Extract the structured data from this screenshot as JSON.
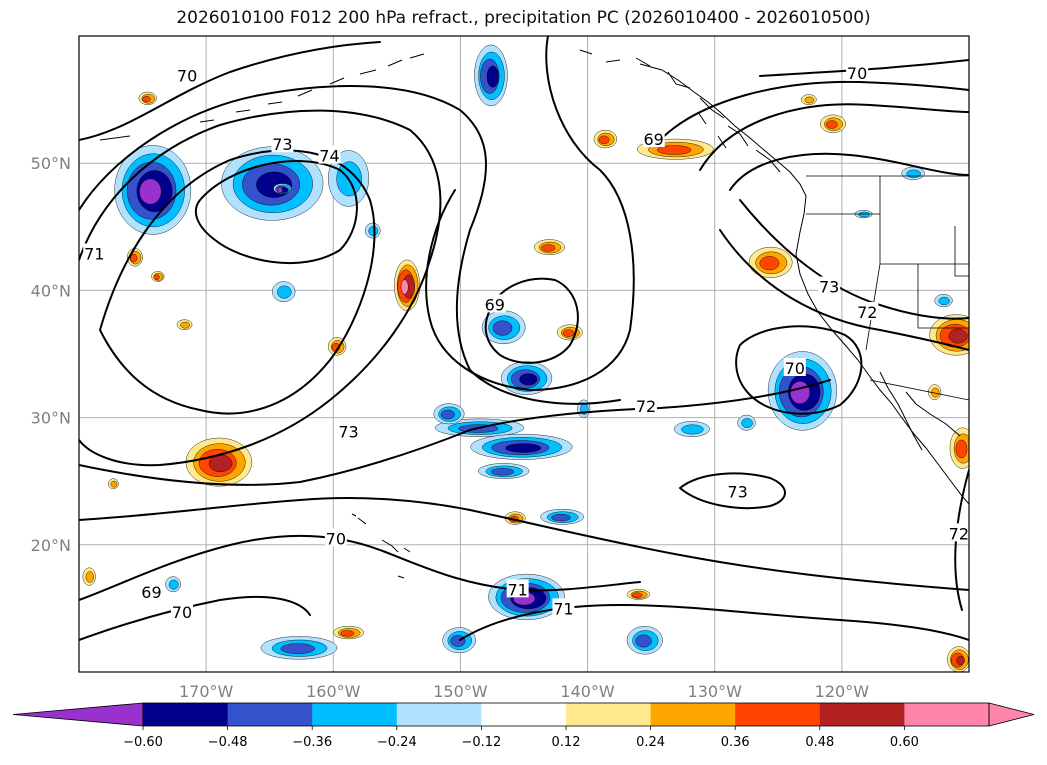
{
  "title": "2026010100 F012 200 hPa refract., precipitation PC (2026010400 - 2026010500)",
  "map": {
    "lon_range": [
      -180,
      -110
    ],
    "lat_range": [
      10,
      60
    ],
    "lat_ticks": [
      {
        "value": 50,
        "label": "50°N"
      },
      {
        "value": 40,
        "label": "40°N"
      },
      {
        "value": 30,
        "label": "30°N"
      },
      {
        "value": 20,
        "label": "20°N"
      }
    ],
    "lon_ticks": [
      {
        "value": -170,
        "label": "170°W"
      },
      {
        "value": -160,
        "label": "160°W"
      },
      {
        "value": -150,
        "label": "150°W"
      },
      {
        "value": -140,
        "label": "140°W"
      },
      {
        "value": -130,
        "label": "130°W"
      },
      {
        "value": -120,
        "label": "120°W"
      }
    ],
    "contour_labels": [
      {
        "text": "70",
        "lon": -171.5,
        "lat": 56.9
      },
      {
        "text": "70",
        "lon": -118.8,
        "lat": 57.1
      },
      {
        "text": "73",
        "lon": -164.0,
        "lat": 51.5
      },
      {
        "text": "74",
        "lon": -160.3,
        "lat": 50.6
      },
      {
        "text": "69",
        "lon": -134.8,
        "lat": 51.9
      },
      {
        "text": "71",
        "lon": -178.8,
        "lat": 42.9
      },
      {
        "text": "69",
        "lon": -147.3,
        "lat": 38.9
      },
      {
        "text": "73",
        "lon": -121.0,
        "lat": 40.3
      },
      {
        "text": "72",
        "lon": -118.0,
        "lat": 38.3
      },
      {
        "text": "70",
        "lon": -123.7,
        "lat": 33.9
      },
      {
        "text": "72",
        "lon": -135.4,
        "lat": 30.9
      },
      {
        "text": "73",
        "lon": -158.8,
        "lat": 28.9
      },
      {
        "text": "73",
        "lon": -128.2,
        "lat": 24.2
      },
      {
        "text": "70",
        "lon": -159.8,
        "lat": 20.5
      },
      {
        "text": "69",
        "lon": -174.3,
        "lat": 16.3
      },
      {
        "text": "70",
        "lon": -171.9,
        "lat": 14.7
      },
      {
        "text": "71",
        "lon": -145.5,
        "lat": 16.5
      },
      {
        "text": "71",
        "lon": -141.9,
        "lat": 15.0
      },
      {
        "text": "72",
        "lon": -110.8,
        "lat": 20.9
      }
    ],
    "precip_features": [
      {
        "lon": -174.2,
        "lat": 47.9,
        "rx": 3.0,
        "ry": 3.5,
        "level": -0.6
      },
      {
        "lon": -164.8,
        "lat": 48.4,
        "rx": 4.0,
        "ry": 2.9,
        "level": -0.48
      },
      {
        "lon": -158.8,
        "lat": 48.8,
        "rx": 1.6,
        "ry": 2.2,
        "level": -0.24
      },
      {
        "lon": -156.9,
        "lat": 44.7,
        "rx": 0.6,
        "ry": 0.6,
        "level": -0.24
      },
      {
        "lon": -147.6,
        "lat": 56.9,
        "rx": 1.3,
        "ry": 2.4,
        "level": -0.48
      },
      {
        "lon": -146.6,
        "lat": 37.1,
        "rx": 1.7,
        "ry": 1.3,
        "level": -0.36
      },
      {
        "lon": -144.8,
        "lat": 33.1,
        "rx": 2.0,
        "ry": 1.3,
        "level": -0.48
      },
      {
        "lon": -148.5,
        "lat": 29.2,
        "rx": 3.5,
        "ry": 0.7,
        "level": -0.36
      },
      {
        "lon": -145.2,
        "lat": 27.7,
        "rx": 4.0,
        "ry": 1.0,
        "level": -0.48
      },
      {
        "lon": -150.9,
        "lat": 30.3,
        "rx": 1.2,
        "ry": 0.8,
        "level": -0.36
      },
      {
        "lon": -146.6,
        "lat": 25.8,
        "rx": 2.0,
        "ry": 0.6,
        "level": -0.36
      },
      {
        "lon": -144.8,
        "lat": 15.9,
        "rx": 3.0,
        "ry": 1.8,
        "level": -0.6
      },
      {
        "lon": -150.1,
        "lat": 12.5,
        "rx": 1.3,
        "ry": 1.0,
        "level": -0.36
      },
      {
        "lon": -142.0,
        "lat": 22.2,
        "rx": 1.7,
        "ry": 0.6,
        "level": -0.36
      },
      {
        "lon": -163.9,
        "lat": 39.9,
        "rx": 0.9,
        "ry": 0.8,
        "level": -0.24
      },
      {
        "lon": -140.3,
        "lat": 30.7,
        "rx": 0.5,
        "ry": 0.7,
        "level": -0.24
      },
      {
        "lon": -123.1,
        "lat": 32.1,
        "rx": 2.7,
        "ry": 3.1,
        "level": -0.6
      },
      {
        "lon": -131.8,
        "lat": 29.1,
        "rx": 1.4,
        "ry": 0.6,
        "level": -0.24
      },
      {
        "lon": -127.5,
        "lat": 29.6,
        "rx": 0.7,
        "ry": 0.6,
        "level": -0.24
      },
      {
        "lon": -114.4,
        "lat": 49.2,
        "rx": 0.9,
        "ry": 0.5,
        "level": -0.24
      },
      {
        "lon": -162.7,
        "lat": 11.9,
        "rx": 3.0,
        "ry": 0.9,
        "level": -0.36
      },
      {
        "lon": -135.5,
        "lat": 12.5,
        "rx": 1.4,
        "ry": 1.1,
        "level": -0.36
      },
      {
        "lon": -172.6,
        "lat": 16.9,
        "rx": 0.6,
        "ry": 0.6,
        "level": -0.24
      },
      {
        "lon": -118.3,
        "lat": 46.0,
        "rx": 0.7,
        "ry": 0.3,
        "level": -0.24
      },
      {
        "lon": -112.0,
        "lat": 39.2,
        "rx": 0.7,
        "ry": 0.5,
        "level": -0.24
      },
      {
        "lon": -154.2,
        "lat": 40.4,
        "rx": 1.0,
        "ry": 2.0,
        "level": 0.6
      },
      {
        "lon": -169.0,
        "lat": 26.5,
        "rx": 2.6,
        "ry": 1.9,
        "level": 0.48
      },
      {
        "lon": -133.1,
        "lat": 51.1,
        "rx": 3.0,
        "ry": 0.8,
        "level": 0.36
      },
      {
        "lon": -138.6,
        "lat": 51.9,
        "rx": 0.9,
        "ry": 0.7,
        "level": 0.36
      },
      {
        "lon": -125.6,
        "lat": 42.2,
        "rx": 1.7,
        "ry": 1.2,
        "level": 0.36
      },
      {
        "lon": -111.0,
        "lat": 36.5,
        "rx": 2.1,
        "ry": 1.6,
        "level": 0.48
      },
      {
        "lon": -110.5,
        "lat": 27.6,
        "rx": 1.0,
        "ry": 1.6,
        "level": 0.36
      },
      {
        "lon": -110.8,
        "lat": 11.0,
        "rx": 0.9,
        "ry": 1.0,
        "level": 0.48
      },
      {
        "lon": -143.0,
        "lat": 43.4,
        "rx": 1.2,
        "ry": 0.6,
        "level": 0.36
      },
      {
        "lon": -175.6,
        "lat": 42.6,
        "rx": 0.6,
        "ry": 0.7,
        "level": 0.36
      },
      {
        "lon": -173.8,
        "lat": 41.1,
        "rx": 0.5,
        "ry": 0.4,
        "level": 0.36
      },
      {
        "lon": -159.7,
        "lat": 35.6,
        "rx": 0.7,
        "ry": 0.7,
        "level": 0.36
      },
      {
        "lon": -145.7,
        "lat": 22.1,
        "rx": 0.8,
        "ry": 0.5,
        "level": 0.36
      },
      {
        "lon": -136.0,
        "lat": 16.1,
        "rx": 0.9,
        "ry": 0.4,
        "level": 0.36
      },
      {
        "lon": -158.8,
        "lat": 13.1,
        "rx": 1.2,
        "ry": 0.5,
        "level": 0.36
      },
      {
        "lon": -120.7,
        "lat": 53.1,
        "rx": 1.0,
        "ry": 0.7,
        "level": 0.36
      },
      {
        "lon": -112.7,
        "lat": 32.0,
        "rx": 0.5,
        "ry": 0.6,
        "level": 0.24
      },
      {
        "lon": -171.7,
        "lat": 37.3,
        "rx": 0.6,
        "ry": 0.4,
        "level": 0.24
      },
      {
        "lon": -179.2,
        "lat": 17.5,
        "rx": 0.5,
        "ry": 0.7,
        "level": 0.24
      },
      {
        "lon": -141.4,
        "lat": 36.7,
        "rx": 1.0,
        "ry": 0.6,
        "level": 0.36
      },
      {
        "lon": -177.3,
        "lat": 24.8,
        "rx": 0.4,
        "ry": 0.4,
        "level": 0.24
      },
      {
        "lon": -164.0,
        "lat": 48.0,
        "rx": 0.7,
        "ry": 0.4,
        "level": -0.6
      },
      {
        "lon": -174.6,
        "lat": 55.1,
        "rx": 0.7,
        "ry": 0.5,
        "level": 0.36
      },
      {
        "lon": -122.6,
        "lat": 55.0,
        "rx": 0.6,
        "ry": 0.4,
        "level": 0.24
      }
    ]
  },
  "colorbar": {
    "levels": [
      -0.6,
      -0.48,
      -0.36,
      -0.24,
      -0.12,
      0.12,
      0.24,
      0.36,
      0.48,
      0.6
    ],
    "tick_labels": [
      "−0.60",
      "−0.48",
      "−0.36",
      "−0.24",
      "−0.12",
      "0.12",
      "0.24",
      "0.36",
      "0.48",
      "0.60"
    ],
    "colors": [
      "#9932cc",
      "#00008b",
      "#3452cc",
      "#00bfff",
      "#b0e2ff",
      "#ffffff",
      "#ffe98e",
      "#ffa500",
      "#ff4500",
      "#b22222",
      "#ff86aa"
    ]
  }
}
